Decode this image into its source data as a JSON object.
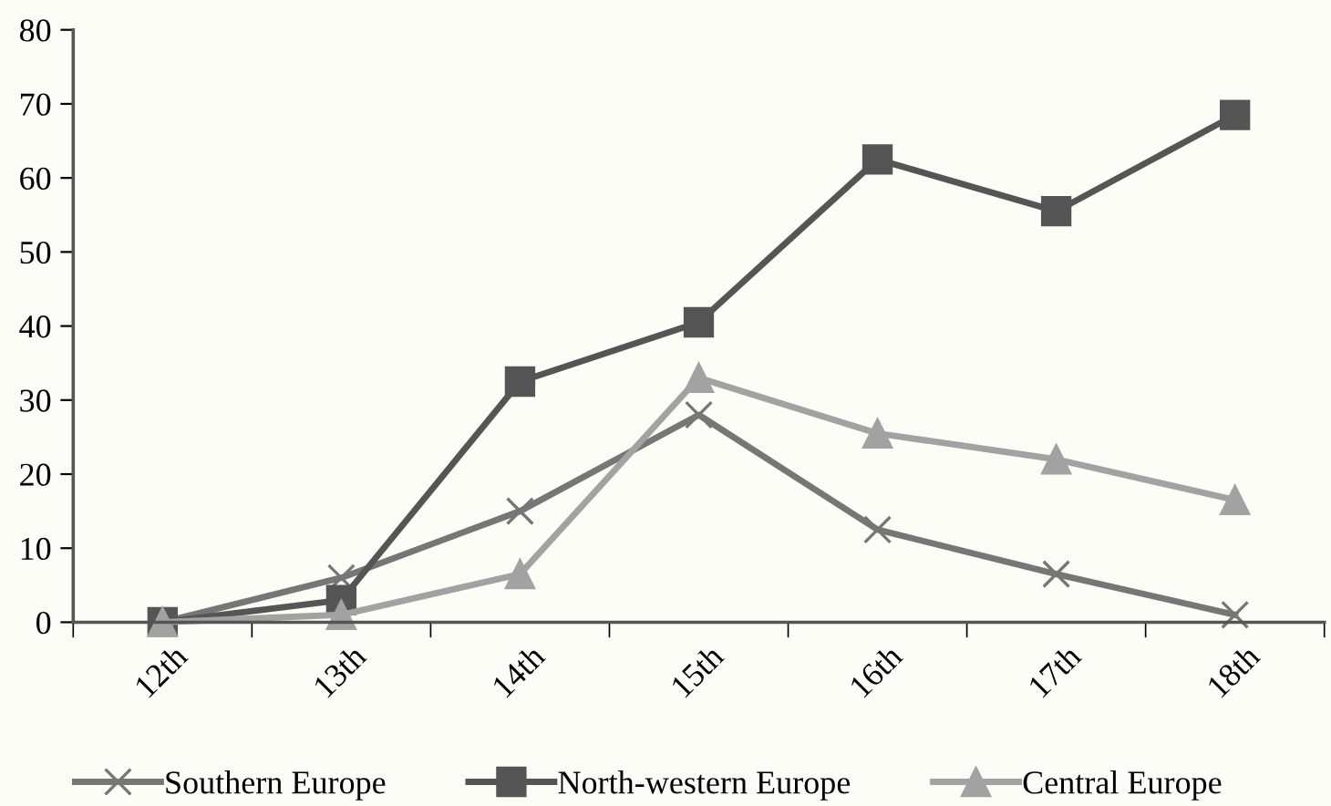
{
  "chart_data": {
    "type": "line",
    "categories": [
      "12th",
      "13th",
      "14th",
      "15th",
      "16th",
      "17th",
      "18th"
    ],
    "series": [
      {
        "name": "Southern Europe",
        "color": "#767676",
        "marker": "cross",
        "values": [
          0,
          6,
          15,
          28,
          12.5,
          6.5,
          1
        ]
      },
      {
        "name": "North-western Europe",
        "color": "#555555",
        "marker": "square",
        "values": [
          0,
          3,
          32.5,
          40.5,
          62.5,
          55.5,
          68.5
        ]
      },
      {
        "name": "Central Europe",
        "color": "#a2a2a2",
        "marker": "triangle",
        "values": [
          0,
          1,
          6.5,
          33,
          25.5,
          22,
          16.5
        ]
      }
    ],
    "ylim": [
      0,
      80
    ],
    "yticks": [
      0,
      10,
      20,
      30,
      40,
      50,
      60,
      70,
      80
    ],
    "grid": false,
    "legend": "bottom",
    "line_style": "solid"
  }
}
